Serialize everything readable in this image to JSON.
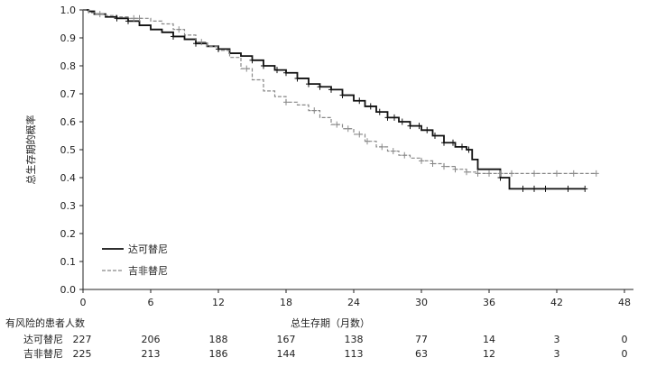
{
  "chart_data": {
    "type": "line",
    "chart_kind": "kaplan-meier survival curve",
    "title": "",
    "xlabel": "总生存期（月数）",
    "ylabel": "总生存期的概率",
    "xlim": [
      0,
      48
    ],
    "ylim": [
      0.0,
      1.0
    ],
    "x_ticks": [
      0,
      6,
      12,
      18,
      24,
      30,
      36,
      42,
      48
    ],
    "y_ticks": [
      "0.0",
      "0.1",
      "0.2",
      "0.3",
      "0.4",
      "0.5",
      "0.6",
      "0.7",
      "0.8",
      "0.9",
      "1.0"
    ],
    "grid": false,
    "legend_placement": "bottom-left",
    "series": [
      {
        "name": "达可替尼",
        "style": "solid",
        "color": "#111111",
        "x": [
          0,
          0.5,
          1,
          2,
          3,
          4,
          5,
          6,
          7,
          8,
          9,
          10,
          11,
          12,
          13,
          14,
          15,
          16,
          17,
          18,
          19,
          20,
          21,
          22,
          23,
          24,
          25,
          26,
          27,
          28,
          29,
          30,
          31,
          32,
          33,
          34,
          34.5,
          35,
          36,
          37,
          37.8,
          40,
          42,
          44.5
        ],
        "y": [
          1.0,
          0.995,
          0.985,
          0.975,
          0.97,
          0.96,
          0.945,
          0.93,
          0.92,
          0.905,
          0.895,
          0.88,
          0.87,
          0.86,
          0.845,
          0.835,
          0.82,
          0.8,
          0.785,
          0.775,
          0.755,
          0.735,
          0.725,
          0.715,
          0.695,
          0.675,
          0.655,
          0.635,
          0.615,
          0.6,
          0.585,
          0.57,
          0.55,
          0.525,
          0.51,
          0.5,
          0.465,
          0.43,
          0.43,
          0.4,
          0.36,
          0.36,
          0.36,
          0.36
        ]
      },
      {
        "name": "吉非替尼",
        "style": "dashed",
        "color": "#888888",
        "x": [
          0,
          0.5,
          1,
          2,
          3,
          4,
          5,
          6,
          7,
          8,
          9,
          10,
          11,
          12,
          13,
          14,
          15,
          16,
          17,
          18,
          19,
          20,
          21,
          22,
          23,
          24,
          25,
          26,
          27,
          28,
          29,
          30,
          31,
          32,
          33,
          34,
          35,
          36,
          38,
          40,
          42,
          45.5
        ],
        "y": [
          1.0,
          0.99,
          0.985,
          0.98,
          0.975,
          0.97,
          0.97,
          0.96,
          0.95,
          0.93,
          0.91,
          0.885,
          0.87,
          0.855,
          0.83,
          0.79,
          0.75,
          0.71,
          0.69,
          0.67,
          0.66,
          0.64,
          0.615,
          0.59,
          0.575,
          0.555,
          0.53,
          0.51,
          0.495,
          0.48,
          0.47,
          0.46,
          0.45,
          0.44,
          0.43,
          0.42,
          0.415,
          0.415,
          0.415,
          0.415,
          0.415,
          0.415
        ]
      }
    ],
    "censor_marks": {
      "series_0_x": [
        3,
        4,
        8,
        10,
        12,
        15,
        16,
        17.2,
        18,
        19,
        20,
        21,
        22,
        23,
        24.5,
        25.5,
        26.3,
        27,
        27.6,
        28.3,
        29,
        29.8,
        30.5,
        31.2,
        32,
        32.8,
        33.6,
        34.2,
        37,
        39,
        40,
        41,
        43,
        44.5
      ],
      "series_1_x": [
        1.5,
        4.5,
        5,
        8.5,
        10.5,
        14.5,
        18,
        20.5,
        22.5,
        23.5,
        24.5,
        25.2,
        26.5,
        27.5,
        28.5,
        30,
        31,
        32,
        33,
        34,
        35,
        36,
        37,
        38,
        40,
        42,
        43.5,
        45.5
      ]
    },
    "risk_table": {
      "header": "有风险的患者人数",
      "times": [
        "0",
        "6",
        "12",
        "18",
        "24",
        "30",
        "36",
        "42",
        "48"
      ],
      "rows": [
        {
          "label": "达可替尼",
          "counts": [
            "227",
            "206",
            "188",
            "167",
            "138",
            "77",
            "14",
            "3",
            "0"
          ]
        },
        {
          "label": "吉非替尼",
          "counts": [
            "225",
            "213",
            "186",
            "144",
            "113",
            "63",
            "12",
            "3",
            "0"
          ]
        }
      ]
    }
  }
}
